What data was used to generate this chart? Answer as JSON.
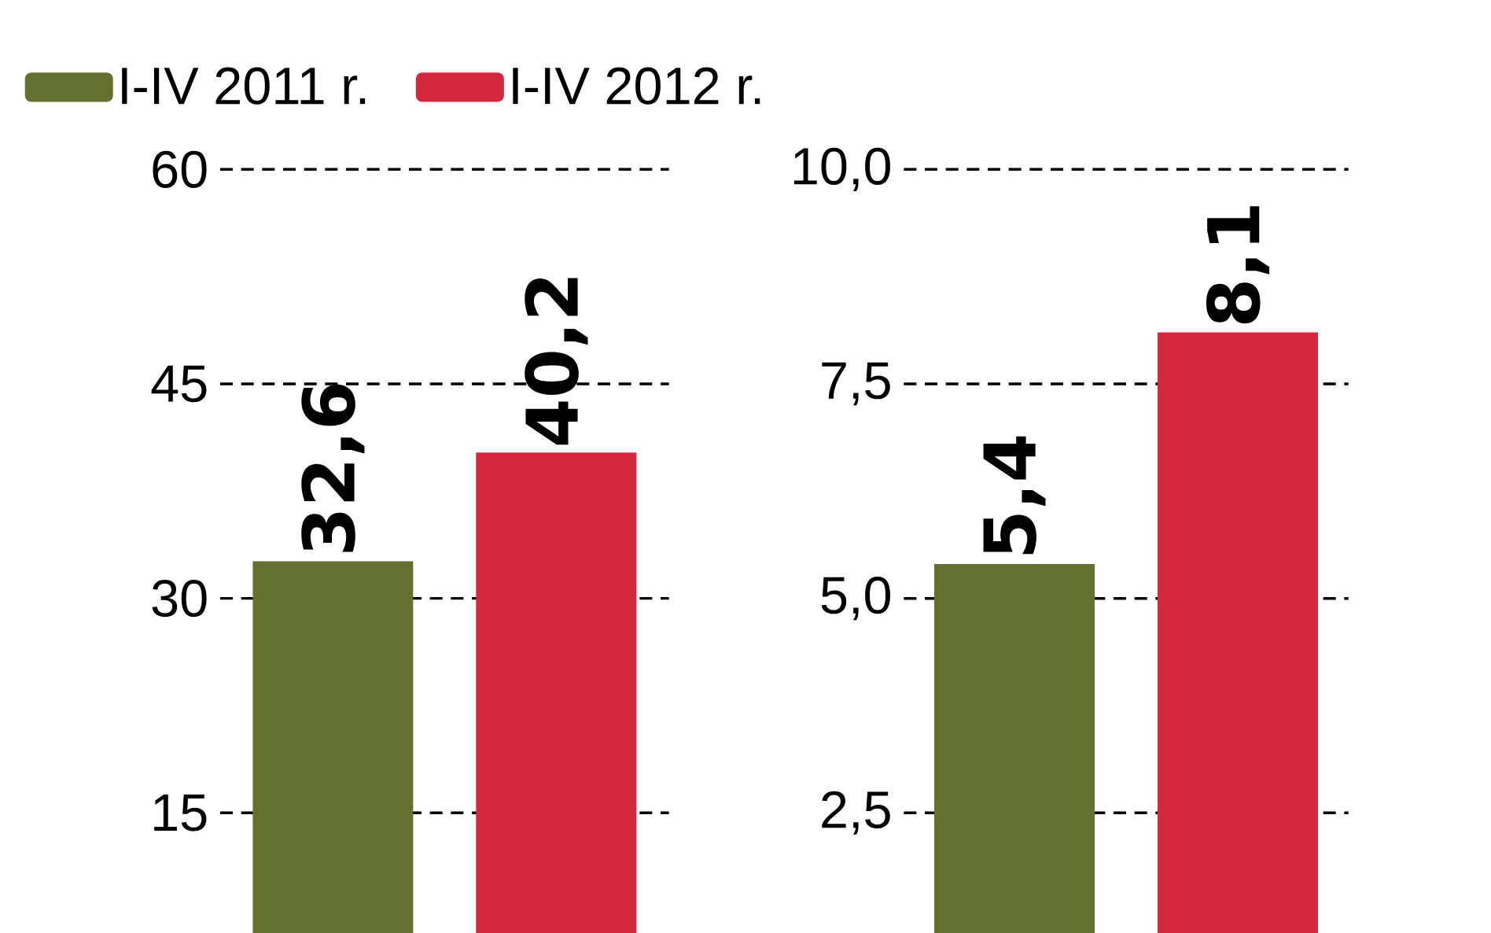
{
  "chart_data": [
    {
      "type": "bar",
      "categories": [
        null
      ],
      "series": [
        {
          "name": "I-IV 2011 r.",
          "color": "#64702f",
          "values": [
            32.6
          ],
          "value_labels": [
            "32,6"
          ]
        },
        {
          "name": "I-IV 2012 r.",
          "color": "#d4283f",
          "values": [
            40.2
          ],
          "value_labels": [
            "40,2"
          ]
        }
      ],
      "ylim": [
        6.6,
        60
      ],
      "yticks": [
        15,
        30,
        45,
        60
      ],
      "grid": "y",
      "legend": "top"
    },
    {
      "type": "bar",
      "categories": [
        null
      ],
      "series": [
        {
          "color": "#64702f",
          "values": [
            5.4
          ],
          "value_labels": [
            "5,4"
          ]
        },
        {
          "color": "#d4283f",
          "values": [
            8.1
          ],
          "value_labels": [
            "8,1"
          ]
        }
      ],
      "ylim": [
        1.1,
        10
      ],
      "yticks": [
        {
          "value": 2.5,
          "label": "2,5"
        },
        {
          "value": 5,
          "label": "5,0"
        },
        {
          "value": 7.5,
          "label": "7,5"
        },
        {
          "value": 10,
          "label": "10,0"
        }
      ],
      "grid": "y"
    }
  ]
}
